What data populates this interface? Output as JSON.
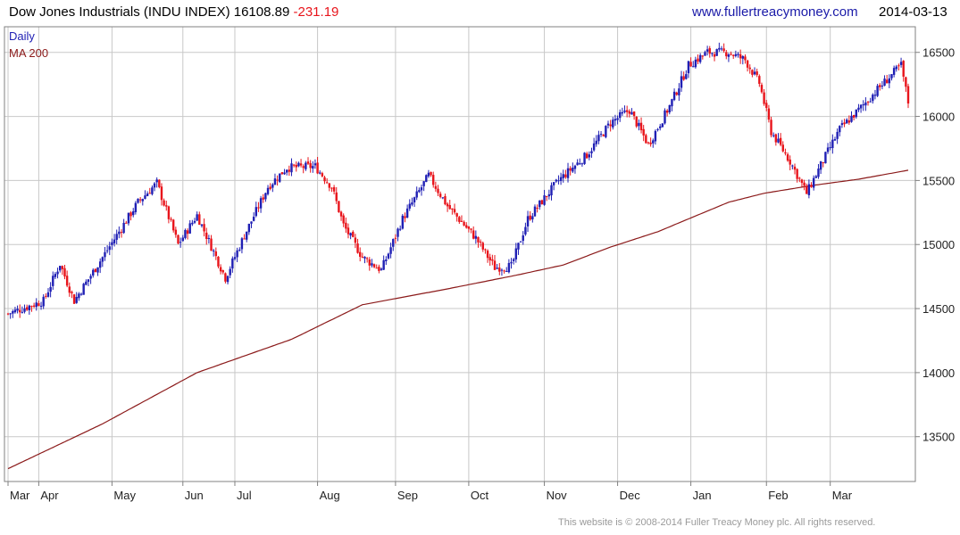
{
  "header": {
    "title": "Dow Jones Industrials (INDU INDEX)",
    "last": "16108.89",
    "change": "-231.19",
    "website": "www.fullertreacymoney.com",
    "date": "2014-03-13"
  },
  "footer": "This website is © 2008-2014 Fuller Treacy Money plc. All rights reserved.",
  "chart_data": {
    "type": "candlestick",
    "legend": [
      "Daily",
      "MA 200"
    ],
    "legend_position": "top-left",
    "colors": {
      "up": "#1f1fb4",
      "down": "#e8141b",
      "ma": "#8b1a1a",
      "grid": "#c8c8c8",
      "axis": "#808080",
      "legend_daily": "#1f1fb4",
      "legend_ma": "#8b1a1a"
    },
    "y_ticks": [
      13500,
      14000,
      14500,
      15000,
      15500,
      16000,
      16500
    ],
    "ylim": [
      13150,
      16700
    ],
    "y_axis_side": "right",
    "grid": true,
    "x_ticks": [
      "Mar",
      "Apr",
      "May",
      "Jun",
      "Jul",
      "Aug",
      "Sep",
      "Oct",
      "Nov",
      "Dec",
      "Jan",
      "Feb",
      "Mar"
    ],
    "x_tick_index": [
      0,
      13,
      44,
      74,
      96,
      131,
      164,
      195,
      227,
      258,
      289,
      321,
      348
    ],
    "num_sessions": 382,
    "anchors": [
      [
        0,
        14460
      ],
      [
        15,
        14560
      ],
      [
        22,
        14850
      ],
      [
        28,
        14560
      ],
      [
        40,
        14900
      ],
      [
        55,
        15330
      ],
      [
        63,
        15480
      ],
      [
        72,
        15000
      ],
      [
        80,
        15230
      ],
      [
        92,
        14740
      ],
      [
        100,
        15070
      ],
      [
        110,
        15450
      ],
      [
        118,
        15600
      ],
      [
        130,
        15610
      ],
      [
        137,
        15450
      ],
      [
        142,
        15150
      ],
      [
        150,
        14900
      ],
      [
        158,
        14800
      ],
      [
        167,
        15200
      ],
      [
        178,
        15540
      ],
      [
        186,
        15300
      ],
      [
        198,
        15050
      ],
      [
        206,
        14820
      ],
      [
        213,
        14830
      ],
      [
        220,
        15200
      ],
      [
        233,
        15500
      ],
      [
        245,
        15700
      ],
      [
        255,
        15950
      ],
      [
        263,
        16050
      ],
      [
        271,
        15780
      ],
      [
        280,
        16080
      ],
      [
        288,
        16400
      ],
      [
        296,
        16500
      ],
      [
        305,
        16500
      ],
      [
        312,
        16440
      ],
      [
        318,
        16260
      ],
      [
        323,
        15880
      ],
      [
        331,
        15650
      ],
      [
        338,
        15400
      ],
      [
        344,
        15620
      ],
      [
        352,
        15900
      ],
      [
        360,
        16050
      ],
      [
        370,
        16250
      ],
      [
        378,
        16400
      ],
      [
        381,
        16110
      ]
    ],
    "ma200": [
      [
        0,
        13250
      ],
      [
        40,
        13600
      ],
      [
        80,
        14000
      ],
      [
        120,
        14260
      ],
      [
        150,
        14530
      ],
      [
        185,
        14650
      ],
      [
        215,
        14760
      ],
      [
        235,
        14840
      ],
      [
        255,
        14980
      ],
      [
        275,
        15100
      ],
      [
        305,
        15330
      ],
      [
        320,
        15400
      ],
      [
        340,
        15460
      ],
      [
        360,
        15510
      ],
      [
        381,
        15580
      ]
    ]
  }
}
